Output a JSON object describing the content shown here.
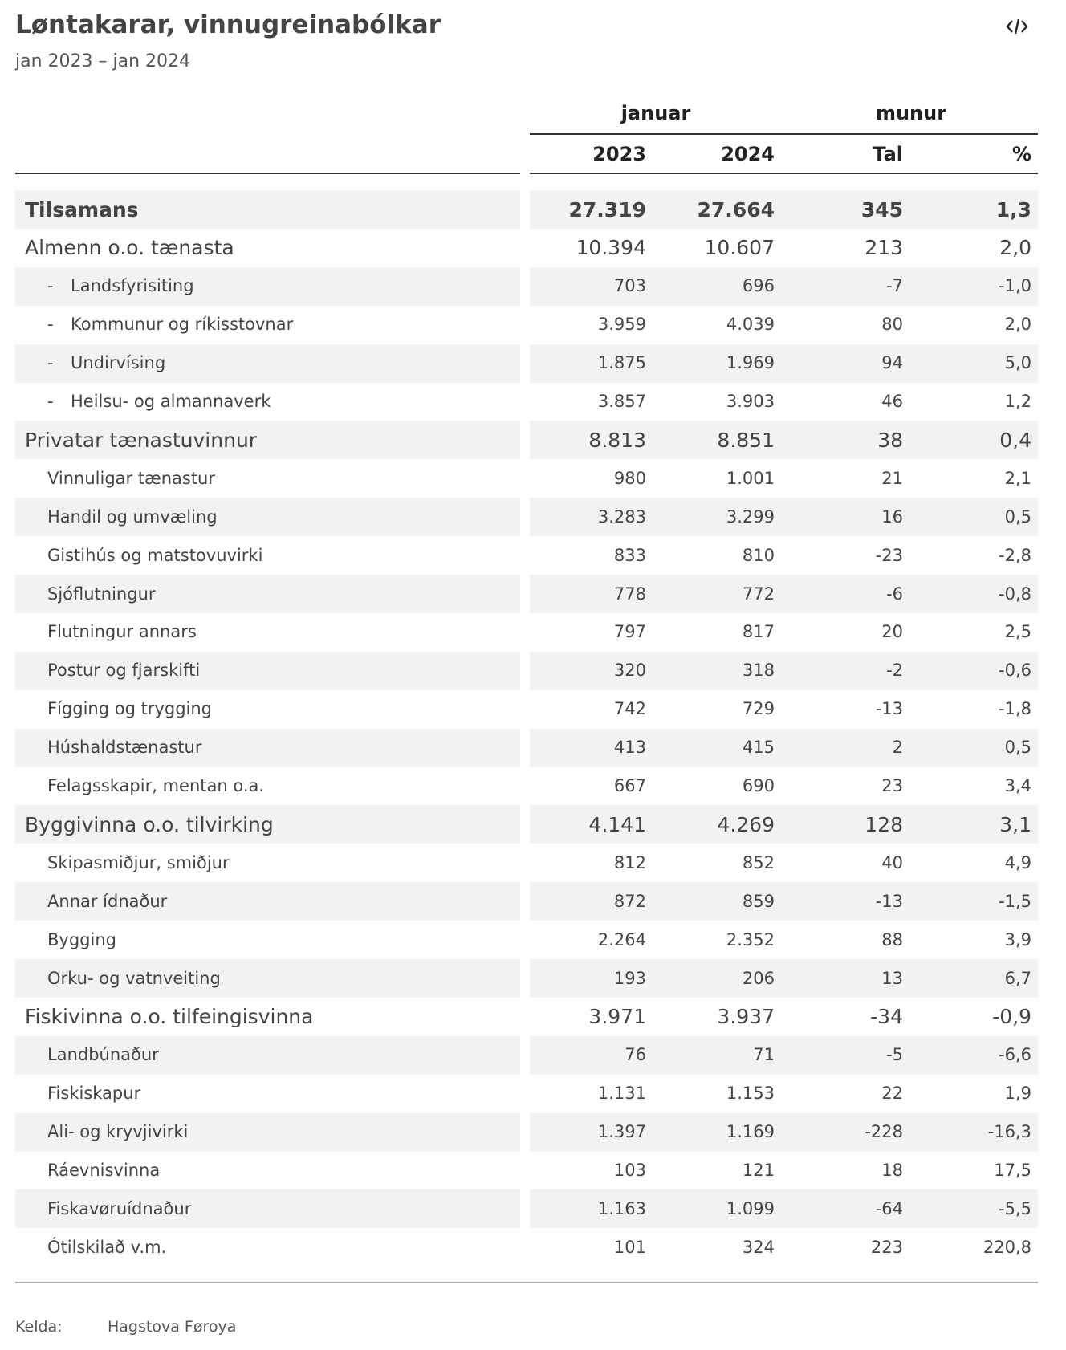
{
  "header": {
    "title": "Løntakarar, vinnugreinabólkar",
    "subtitle": "jan 2023 – jan 2024"
  },
  "table": {
    "column_groups": [
      "januar",
      "munur"
    ],
    "columns": [
      "2023",
      "2024",
      "Tal",
      "%"
    ],
    "total": {
      "label": "Tilsamans",
      "values": [
        "27.319",
        "27.664",
        "345",
        "1,3"
      ]
    },
    "groups": [
      {
        "label": "Almenn o.o. tænasta",
        "values": [
          "10.394",
          "10.607",
          "213",
          "2,0"
        ],
        "items": [
          {
            "prefix": "-",
            "label": "Landsfyrisiting",
            "values": [
              "703",
              "696",
              "-7",
              "-1,0"
            ]
          },
          {
            "prefix": "-",
            "label": "Kommunur og ríkisstovnar",
            "values": [
              "3.959",
              "4.039",
              "80",
              "2,0"
            ]
          },
          {
            "prefix": "-",
            "label": "Undirvísing",
            "values": [
              "1.875",
              "1.969",
              "94",
              "5,0"
            ]
          },
          {
            "prefix": "-",
            "label": "Heilsu- og almannaverk",
            "values": [
              "3.857",
              "3.903",
              "46",
              "1,2"
            ]
          }
        ]
      },
      {
        "label": "Privatar tænastuvinnur",
        "values": [
          "8.813",
          "8.851",
          "38",
          "0,4"
        ],
        "items": [
          {
            "label": "Vinnuligar tænastur",
            "values": [
              "980",
              "1.001",
              "21",
              "2,1"
            ]
          },
          {
            "label": "Handil og umvæling",
            "values": [
              "3.283",
              "3.299",
              "16",
              "0,5"
            ]
          },
          {
            "label": "Gistihús og matstovuvirki",
            "values": [
              "833",
              "810",
              "-23",
              "-2,8"
            ]
          },
          {
            "label": "Sjóflutningur",
            "values": [
              "778",
              "772",
              "-6",
              "-0,8"
            ]
          },
          {
            "label": "Flutningur annars",
            "values": [
              "797",
              "817",
              "20",
              "2,5"
            ]
          },
          {
            "label": "Postur og fjarskifti",
            "values": [
              "320",
              "318",
              "-2",
              "-0,6"
            ]
          },
          {
            "label": "Fígging og trygging",
            "values": [
              "742",
              "729",
              "-13",
              "-1,8"
            ]
          },
          {
            "label": "Húshaldstænastur",
            "values": [
              "413",
              "415",
              "2",
              "0,5"
            ]
          },
          {
            "label": "Felagsskapir, mentan o.a.",
            "values": [
              "667",
              "690",
              "23",
              "3,4"
            ]
          }
        ]
      },
      {
        "label": "Byggivinna o.o. tilvirking",
        "values": [
          "4.141",
          "4.269",
          "128",
          "3,1"
        ],
        "items": [
          {
            "label": "Skipasmiðjur, smiðjur",
            "values": [
              "812",
              "852",
              "40",
              "4,9"
            ]
          },
          {
            "label": "Annar ídnaður",
            "values": [
              "872",
              "859",
              "-13",
              "-1,5"
            ]
          },
          {
            "label": "Bygging",
            "values": [
              "2.264",
              "2.352",
              "88",
              "3,9"
            ]
          },
          {
            "label": "Orku- og vatnveiting",
            "values": [
              "193",
              "206",
              "13",
              "6,7"
            ]
          }
        ]
      },
      {
        "label": "Fiskivinna o.o. tilfeingisvinna",
        "values": [
          "3.971",
          "3.937",
          "-34",
          "-0,9"
        ],
        "items": [
          {
            "label": "Landbúnaður",
            "values": [
              "76",
              "71",
              "-5",
              "-6,6"
            ]
          },
          {
            "label": "Fiskiskapur",
            "values": [
              "1.131",
              "1.153",
              "22",
              "1,9"
            ]
          },
          {
            "label": "Ali- og kryvjivirki",
            "values": [
              "1.397",
              "1.169",
              "-228",
              "-16,3"
            ]
          },
          {
            "label": "Ráevnisvinna",
            "values": [
              "103",
              "121",
              "18",
              "17,5"
            ]
          },
          {
            "label": "Fiskavøruídnaður",
            "values": [
              "1.163",
              "1.099",
              "-64",
              "-5,5"
            ]
          },
          {
            "label": "Ótilskilað v.m.",
            "values": [
              "101",
              "324",
              "223",
              "220,8"
            ]
          }
        ]
      }
    ]
  },
  "footer": {
    "source_label": "Kelda:",
    "source": "Hagstova Føroya"
  }
}
